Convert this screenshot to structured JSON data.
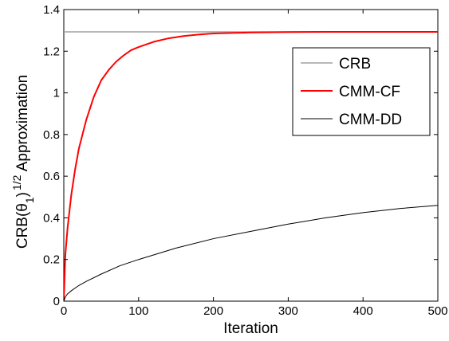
{
  "chart_data": {
    "type": "line",
    "xlabel": "Iteration",
    "ylabel": {
      "prefix": "CRB(θ",
      "subscript": "1",
      "close": ")",
      "superscript": "1/2",
      "suffix": " Approximation"
    },
    "xlim": [
      0,
      500
    ],
    "ylim": [
      0,
      1.4
    ],
    "x_ticks": [
      0,
      100,
      200,
      300,
      400,
      500
    ],
    "y_ticks": [
      0,
      0.2,
      0.4,
      0.6,
      0.8,
      1,
      1.2,
      1.4
    ],
    "x_tick_labels": [
      "0",
      "100",
      "200",
      "300",
      "400",
      "500"
    ],
    "y_tick_labels": [
      "0",
      "0.2",
      "0.4",
      "0.6",
      "0.8",
      "1",
      "1.2",
      "1.4"
    ],
    "grid": false,
    "legend_position": "upper-right",
    "series": [
      {
        "name": "CRB",
        "color": "#a0a0a0",
        "x": [
          0,
          500
        ],
        "y": [
          1.293,
          1.293
        ]
      },
      {
        "name": "CMM-CF",
        "color": "#ff0000",
        "x": [
          0,
          2,
          5,
          10,
          15,
          20,
          30,
          40,
          50,
          60,
          70,
          80,
          90,
          100,
          120,
          140,
          160,
          180,
          200,
          250,
          300,
          350,
          400,
          450,
          500
        ],
        "y": [
          0,
          0.22,
          0.35,
          0.51,
          0.63,
          0.73,
          0.87,
          0.98,
          1.06,
          1.11,
          1.15,
          1.18,
          1.205,
          1.22,
          1.245,
          1.262,
          1.273,
          1.28,
          1.285,
          1.29,
          1.292,
          1.293,
          1.293,
          1.293,
          1.293
        ]
      },
      {
        "name": "CMM-DD",
        "color": "#000000",
        "x": [
          0,
          2,
          5,
          10,
          20,
          30,
          50,
          75,
          100,
          150,
          200,
          250,
          300,
          350,
          400,
          450,
          500
        ],
        "y": [
          0,
          0.02,
          0.035,
          0.05,
          0.075,
          0.095,
          0.13,
          0.17,
          0.2,
          0.255,
          0.3,
          0.335,
          0.37,
          0.4,
          0.425,
          0.445,
          0.46
        ]
      }
    ]
  }
}
